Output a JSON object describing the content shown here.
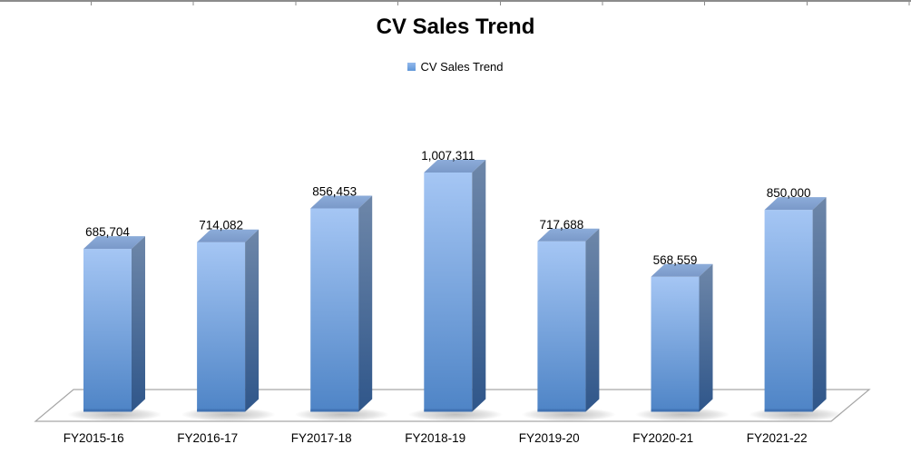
{
  "title": "CV Sales Trend",
  "legend": {
    "label": "CV Sales Trend",
    "position": "top"
  },
  "chart_data": {
    "type": "bar",
    "style": "3d-box",
    "title": "CV Sales Trend",
    "series_name": "CV Sales Trend",
    "categories": [
      "FY2015-16",
      "FY2016-17",
      "FY2017-18",
      "FY2018-19",
      "FY2019-20",
      "FY2020-21",
      "FY2021-22"
    ],
    "values": [
      685704,
      714082,
      856453,
      1007311,
      717688,
      568559,
      850000
    ],
    "value_labels": [
      "685,704",
      "714,082",
      "856,453",
      "1,007,311",
      "717,688",
      "568,559",
      "850,000"
    ],
    "xlabel": "",
    "ylabel": "",
    "ylim": [
      0,
      1100000
    ],
    "gridlines": false,
    "y_axis_visible": false,
    "legend_position": "top",
    "colors": {
      "bar_front_top": "#a5c6f4",
      "bar_front_bottom": "#4e84c6",
      "bar_side_top": "#6e87a9",
      "bar_side_bottom": "#2f568a",
      "bar_top_light": "#8cacd9",
      "bar_top_dark": "#7a99c9",
      "bar_bottom_edge": "#3465a4",
      "floor_stroke": "#a6a6a6",
      "label_text": "#000000",
      "legend_swatch_top": "#94b9ec",
      "legend_swatch_bottom": "#5f96d8",
      "ruler_line": "#8b8b8b"
    }
  }
}
